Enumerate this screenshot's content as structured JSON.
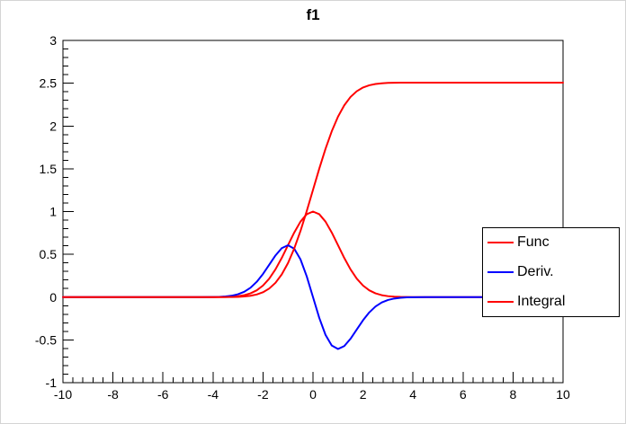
{
  "chart_data": {
    "type": "line",
    "title": "f1",
    "xlabel": "",
    "ylabel": "",
    "xlim": [
      -10,
      10
    ],
    "ylim": [
      -1,
      3
    ],
    "x_ticks": [
      -10,
      -8,
      -6,
      -4,
      -2,
      0,
      2,
      4,
      6,
      8,
      10
    ],
    "y_ticks": [
      -1,
      -0.5,
      0,
      0.5,
      1,
      1.5,
      2,
      2.5,
      3
    ],
    "x_minor_step": 0.4,
    "y_minor_step": 0.1,
    "grid": false,
    "frame_color": "#000000",
    "background_color": "#ffffff",
    "legend": {
      "position": "middle-right",
      "entries": [
        {
          "label": "Func",
          "color": "#ff0000"
        },
        {
          "label": "Deriv.",
          "color": "#0000ff"
        },
        {
          "label": "Integral",
          "color": "#ff0000"
        }
      ]
    },
    "series": [
      {
        "name": "Func",
        "color": "#ff0000",
        "points": [
          [
            -10,
            0
          ],
          [
            -8,
            0
          ],
          [
            -6,
            0
          ],
          [
            -5,
            0
          ],
          [
            -4.5,
            0.0001
          ],
          [
            -4,
            0.0003
          ],
          [
            -3.75,
            0.0009
          ],
          [
            -3.5,
            0.0022
          ],
          [
            -3.25,
            0.0051
          ],
          [
            -3,
            0.0111
          ],
          [
            -2.75,
            0.0228
          ],
          [
            -2.5,
            0.0439
          ],
          [
            -2.25,
            0.0796
          ],
          [
            -2,
            0.1353
          ],
          [
            -1.75,
            0.2163
          ],
          [
            -1.5,
            0.3247
          ],
          [
            -1.25,
            0.4578
          ],
          [
            -1,
            0.6065
          ],
          [
            -0.75,
            0.7548
          ],
          [
            -0.5,
            0.8825
          ],
          [
            -0.25,
            0.9692
          ],
          [
            0,
            1
          ],
          [
            0.25,
            0.9692
          ],
          [
            0.5,
            0.8825
          ],
          [
            0.75,
            0.7548
          ],
          [
            1,
            0.6065
          ],
          [
            1.25,
            0.4578
          ],
          [
            1.5,
            0.3247
          ],
          [
            1.75,
            0.2163
          ],
          [
            2,
            0.1353
          ],
          [
            2.25,
            0.0796
          ],
          [
            2.5,
            0.0439
          ],
          [
            2.75,
            0.0228
          ],
          [
            3,
            0.0111
          ],
          [
            3.25,
            0.0051
          ],
          [
            3.5,
            0.0022
          ],
          [
            3.75,
            0.0009
          ],
          [
            4,
            0.0003
          ],
          [
            4.5,
            0.0001
          ],
          [
            5,
            0
          ],
          [
            6,
            0
          ],
          [
            8,
            0
          ],
          [
            10,
            0
          ]
        ]
      },
      {
        "name": "Deriv.",
        "color": "#0000ff",
        "points": [
          [
            -10,
            0
          ],
          [
            -8,
            0
          ],
          [
            -6,
            0
          ],
          [
            -5,
            0
          ],
          [
            -4.5,
            0.0002
          ],
          [
            -4,
            0.0013
          ],
          [
            -3.75,
            0.0033
          ],
          [
            -3.5,
            0.0077
          ],
          [
            -3.25,
            0.0165
          ],
          [
            -3,
            0.0333
          ],
          [
            -2.75,
            0.0627
          ],
          [
            -2.5,
            0.1098
          ],
          [
            -2.25,
            0.1791
          ],
          [
            -2,
            0.2707
          ],
          [
            -1.75,
            0.3786
          ],
          [
            -1.5,
            0.487
          ],
          [
            -1.25,
            0.5722
          ],
          [
            -1,
            0.6065
          ],
          [
            -0.75,
            0.5661
          ],
          [
            -0.5,
            0.4412
          ],
          [
            -0.25,
            0.2423
          ],
          [
            0,
            0
          ],
          [
            0.25,
            -0.2423
          ],
          [
            0.5,
            -0.4412
          ],
          [
            0.75,
            -0.5661
          ],
          [
            1,
            -0.6065
          ],
          [
            1.25,
            -0.5722
          ],
          [
            1.5,
            -0.487
          ],
          [
            1.75,
            -0.3786
          ],
          [
            2,
            -0.2707
          ],
          [
            2.25,
            -0.1791
          ],
          [
            2.5,
            -0.1098
          ],
          [
            2.75,
            -0.0627
          ],
          [
            3,
            -0.0333
          ],
          [
            3.25,
            -0.0165
          ],
          [
            3.5,
            -0.0077
          ],
          [
            3.75,
            -0.0033
          ],
          [
            4,
            -0.0013
          ],
          [
            4.5,
            -0.0002
          ],
          [
            5,
            0
          ],
          [
            6,
            0
          ],
          [
            8,
            0
          ],
          [
            10,
            0
          ]
        ]
      },
      {
        "name": "Integral",
        "color": "#ff0000",
        "points": [
          [
            -10,
            0
          ],
          [
            -8,
            0
          ],
          [
            -6,
            0
          ],
          [
            -5,
            0
          ],
          [
            -4.5,
            0
          ],
          [
            -4,
            0.0001
          ],
          [
            -3.75,
            0.0002
          ],
          [
            -3.5,
            0.0005
          ],
          [
            -3.25,
            0.0014
          ],
          [
            -3,
            0.0033
          ],
          [
            -2.75,
            0.0075
          ],
          [
            -2.5,
            0.0155
          ],
          [
            -2.25,
            0.0307
          ],
          [
            -2,
            0.0569
          ],
          [
            -1.75,
            0.1004
          ],
          [
            -1.5,
            0.1673
          ],
          [
            -1.25,
            0.2651
          ],
          [
            -1,
            0.3976
          ],
          [
            -0.75,
            0.5685
          ],
          [
            -0.5,
            0.7733
          ],
          [
            -0.25,
            1.0059
          ],
          [
            0,
            1.2533
          ],
          [
            0.25,
            1.5007
          ],
          [
            0.5,
            1.7333
          ],
          [
            0.75,
            1.9381
          ],
          [
            1,
            2.109
          ],
          [
            1.25,
            2.2415
          ],
          [
            1.5,
            2.3393
          ],
          [
            1.75,
            2.4062
          ],
          [
            2,
            2.4497
          ],
          [
            2.25,
            2.4759
          ],
          [
            2.5,
            2.4911
          ],
          [
            2.75,
            2.4991
          ],
          [
            3,
            2.5033
          ],
          [
            3.25,
            2.5052
          ],
          [
            3.5,
            2.5061
          ],
          [
            3.75,
            2.5064
          ],
          [
            4,
            2.5066
          ],
          [
            4.5,
            2.5066
          ],
          [
            5,
            2.5066
          ],
          [
            6,
            2.5066
          ],
          [
            8,
            2.5066
          ],
          [
            10,
            2.5066
          ]
        ]
      }
    ]
  }
}
